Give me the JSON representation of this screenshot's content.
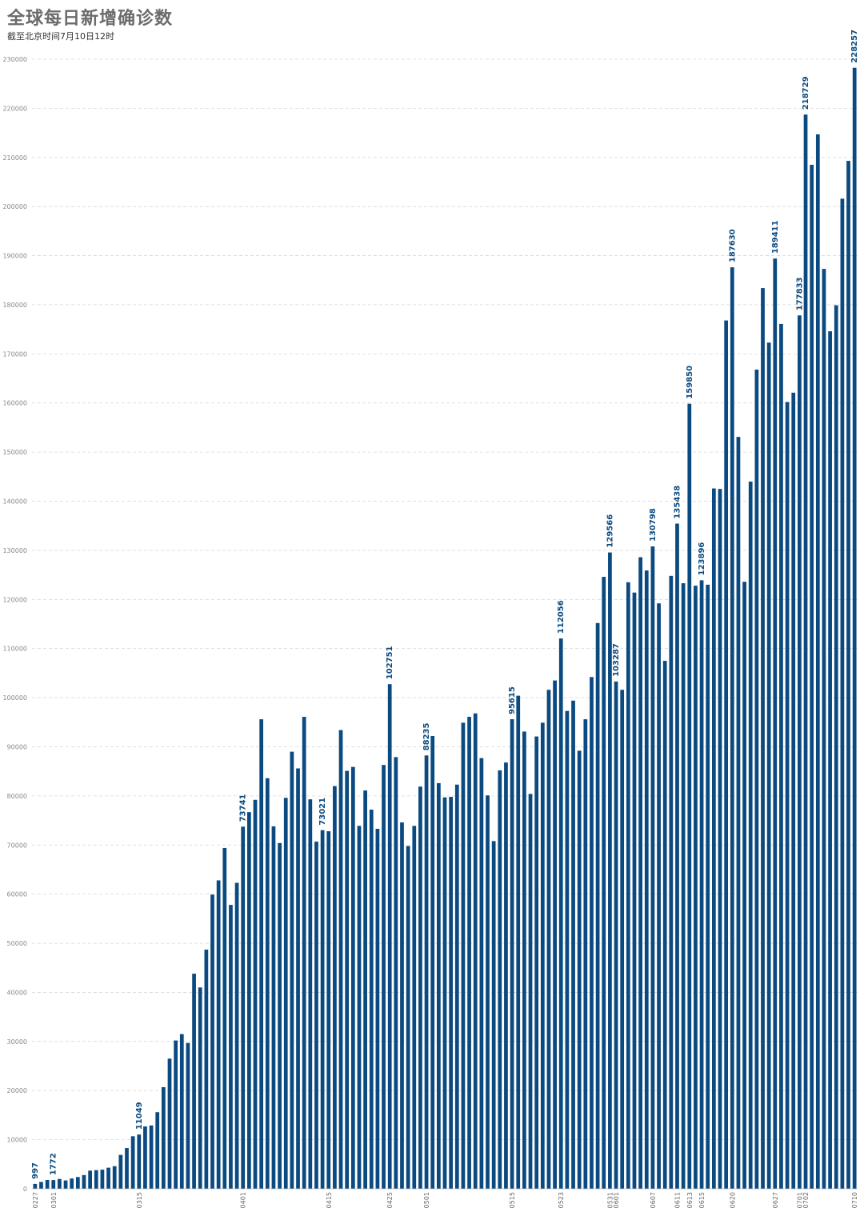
{
  "header": {
    "title": "全球每日新增确诊数",
    "subtitle": "截至北京时间7月10日12时"
  },
  "colors": {
    "bar": "#0b4a80",
    "label": "#0b4a80",
    "grid": "#d8d8d8"
  },
  "chart_data": {
    "type": "bar",
    "title": "全球每日新增确诊数",
    "subtitle": "截至北京时间7月10日12时",
    "xlabel": "",
    "ylabel": "",
    "ylim": [
      0,
      230000
    ],
    "grid": true,
    "yticks": [
      0,
      10000,
      20000,
      30000,
      40000,
      50000,
      60000,
      70000,
      80000,
      90000,
      100000,
      110000,
      120000,
      130000,
      140000,
      150000,
      160000,
      170000,
      180000,
      190000,
      200000,
      210000,
      220000,
      230000
    ],
    "xtick_labels": [
      "0227",
      "0301",
      "0315",
      "0401",
      "0415",
      "0425",
      "0501",
      "0515",
      "0523",
      "0531",
      "0601",
      "0607",
      "0611",
      "0613",
      "0615",
      "0620",
      "0627",
      "0701",
      "0702",
      "0710"
    ],
    "xtick_positions": [
      0,
      3,
      17,
      34,
      48,
      58,
      64,
      78,
      86,
      94,
      95,
      101,
      105,
      107,
      109,
      114,
      121,
      125,
      126,
      134
    ],
    "values": [
      997,
      1400,
      1800,
      1772,
      2000,
      1700,
      2100,
      2400,
      2800,
      3700,
      3800,
      3900,
      4300,
      4600,
      6900,
      8300,
      10700,
      11049,
      12700,
      12900,
      15600,
      20700,
      26500,
      30200,
      31500,
      29700,
      43800,
      41000,
      48700,
      59900,
      62800,
      69400,
      57800,
      62300,
      73741,
      76700,
      79200,
      95600,
      83600,
      73800,
      70400,
      79600,
      89000,
      85600,
      96100,
      79300,
      70700,
      73021,
      72800,
      82000,
      93400,
      85100,
      85900,
      73900,
      81100,
      77200,
      73300,
      86300,
      102751,
      87900,
      74600,
      69800,
      73900,
      81900,
      88235,
      92200,
      82600,
      79700,
      79800,
      82300,
      94900,
      96100,
      96800,
      87700,
      80100,
      70800,
      85200,
      86800,
      95615,
      100400,
      93100,
      80400,
      92100,
      94900,
      101600,
      103500,
      112056,
      97300,
      99400,
      89200,
      95600,
      104200,
      115200,
      124600,
      129566,
      103287,
      101600,
      123500,
      121400,
      128600,
      125900,
      130798,
      119200,
      107500,
      124800,
      135438,
      123300,
      159850,
      122800,
      123896,
      123000,
      142600,
      142500,
      176800,
      187630,
      153100,
      123600,
      144000,
      166800,
      183400,
      172300,
      189411,
      176100,
      160200,
      162100,
      177833,
      218729,
      208500,
      214700,
      187300,
      174600,
      179900,
      201600,
      209300,
      228257
    ],
    "labeled_bars": [
      {
        "index": 0,
        "label": "997"
      },
      {
        "index": 3,
        "label": "1772"
      },
      {
        "index": 17,
        "label": "11049"
      },
      {
        "index": 34,
        "label": "73741"
      },
      {
        "index": 47,
        "label": "73021"
      },
      {
        "index": 58,
        "label": "102751"
      },
      {
        "index": 64,
        "label": "88235"
      },
      {
        "index": 78,
        "label": "95615"
      },
      {
        "index": 86,
        "label": "112056"
      },
      {
        "index": 94,
        "label": "129566"
      },
      {
        "index": 95,
        "label": "103287"
      },
      {
        "index": 101,
        "label": "130798"
      },
      {
        "index": 105,
        "label": "135438"
      },
      {
        "index": 107,
        "label": "159850"
      },
      {
        "index": 109,
        "label": "123896"
      },
      {
        "index": 114,
        "label": "187630"
      },
      {
        "index": 121,
        "label": "189411"
      },
      {
        "index": 125,
        "label": "177833"
      },
      {
        "index": 126,
        "label": "218729"
      },
      {
        "index": 134,
        "label": "228257"
      }
    ]
  }
}
